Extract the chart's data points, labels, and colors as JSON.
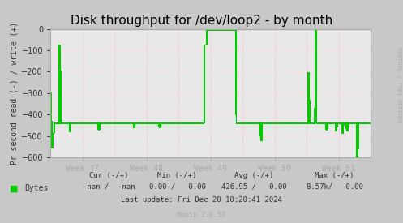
{
  "title": "Disk throughput for /dev/loop2 - by month",
  "ylabel": "Pr second read (-) / write (+)",
  "background_color": "#c8c8c8",
  "plot_bg_color": "#e8e8e8",
  "line_color": "#00cc00",
  "zero_line_color": "#cc0000",
  "grid_h_color": "#ffffff",
  "grid_dotted_color": "#ff9999",
  "spine_color": "#aaaaaa",
  "ylim": [
    -600,
    0
  ],
  "yticks": [
    0,
    -100,
    -200,
    -300,
    -400,
    -500,
    -600
  ],
  "week_labels": [
    "Week 47",
    "Week 48",
    "Week 49",
    "Week 50",
    "Week 51"
  ],
  "watermark": "RRDTOOL / TOBI OETIKER",
  "legend_label": "Bytes",
  "cur": "-nan /  -nan",
  "min_val": "0.00 /   0.00",
  "avg_val": "426.95 /   0.00",
  "max_val": "8.57k/   0.00",
  "last_update": "Last update: Fri Dec 20 10:20:41 2024",
  "munin_version": "Munin 2.0.57",
  "title_fontsize": 11,
  "label_fontsize": 7,
  "tick_fontsize": 7,
  "legend_fontsize": 7,
  "stats_fontsize": 6.5,
  "watermark_fontsize": 5
}
